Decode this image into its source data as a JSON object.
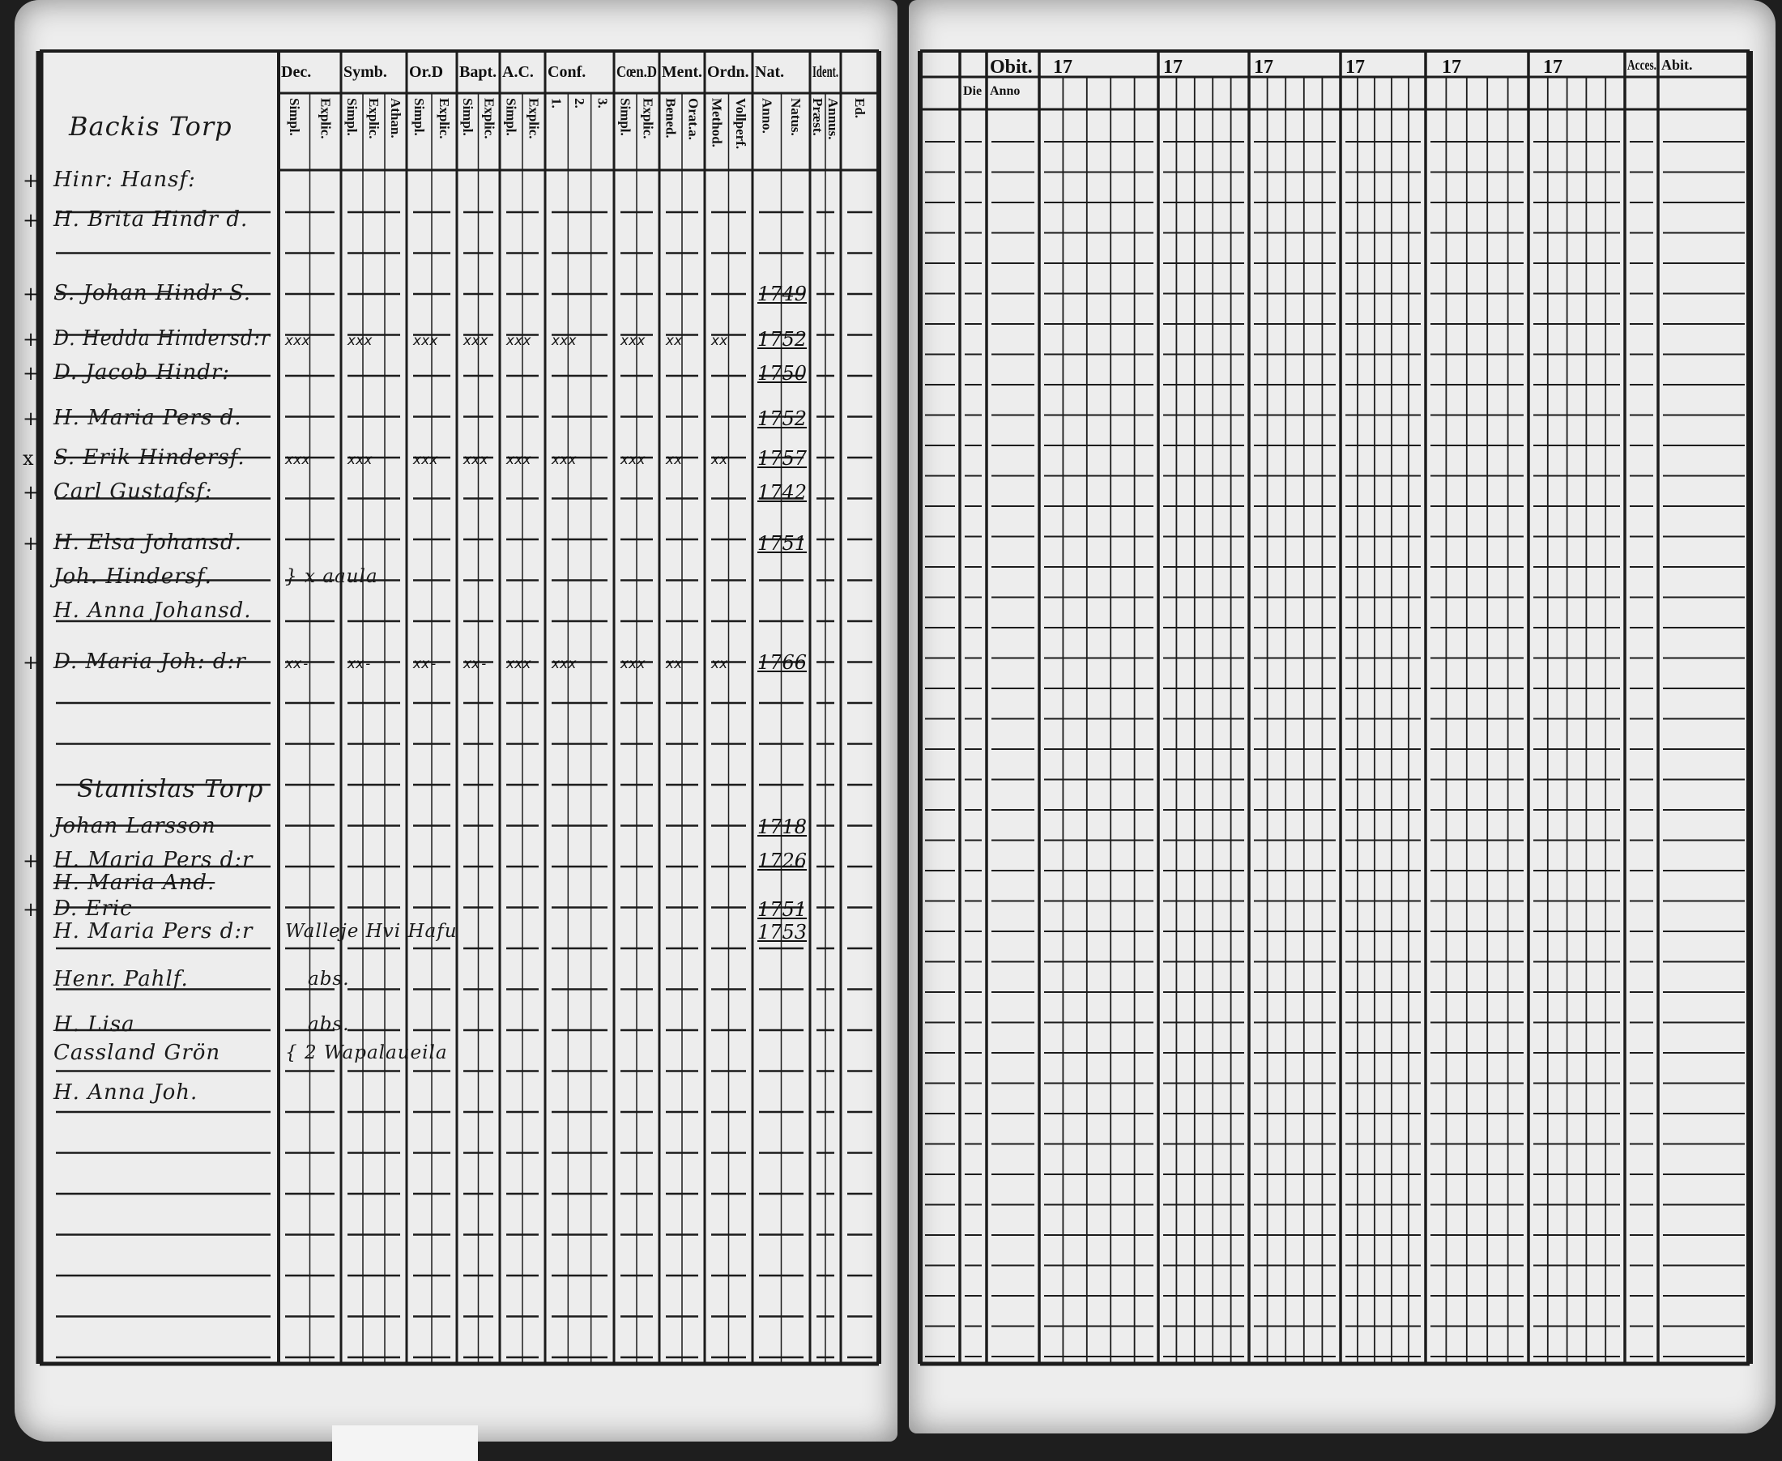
{
  "left_page": {
    "header_columns": [
      {
        "top": "Dec.",
        "sub": [
          "Simpl.",
          "Explic."
        ]
      },
      {
        "top": "Symb.",
        "sub": [
          "Simpl.",
          "Explic.",
          "Athan."
        ]
      },
      {
        "top": "Or.D",
        "sub": [
          "Simpl.",
          "Explic."
        ]
      },
      {
        "top": "Bapt.",
        "sub": [
          "Simpl.",
          "Explic."
        ]
      },
      {
        "top": "A.C.",
        "sub": [
          "Simpl.",
          "Explic."
        ]
      },
      {
        "top": "Conf.",
        "sub": [
          "1.",
          "2.",
          "3."
        ]
      },
      {
        "top": "Cœn.D",
        "sub": [
          "Simpl.",
          "Explic."
        ]
      },
      {
        "top": "Ment.",
        "sub": [
          "Bened.",
          "Orat.a."
        ]
      },
      {
        "top": "Ordn.",
        "sub": [
          "Method.",
          "Vollperf."
        ]
      },
      {
        "top": "Nat.",
        "sub": [
          "Anno.",
          "Natus."
        ]
      },
      {
        "top": "Ident.",
        "sub": [
          "Præst.",
          "Annus."
        ]
      },
      {
        "top": "",
        "sub": [
          "Ed."
        ]
      }
    ],
    "village_titles": [
      "Backis Torp",
      "Stanislas Torp"
    ],
    "entries": [
      {
        "margin": "+",
        "name": "Hinr: Hansf:",
        "marks": [],
        "year": "",
        "note": ""
      },
      {
        "margin": "+",
        "name": "H. Brita Hindr d.",
        "marks": [],
        "year": "",
        "note": ""
      },
      {
        "margin": "+",
        "name": "S. Johan Hindr S.",
        "marks": [],
        "year": "1749",
        "note": ""
      },
      {
        "margin": "+",
        "name": "D. Hedda Hindersd:r",
        "marks": [
          "xxx",
          "xxx",
          "xxx",
          "xxx",
          "xxx",
          "xxx",
          "xxx",
          "xx",
          "xx"
        ],
        "year": "1752",
        "note": ""
      },
      {
        "margin": "+",
        "name": "D. Jacob Hindr:",
        "marks": [],
        "year": "1750",
        "note": ""
      },
      {
        "margin": "+",
        "name": "H. Maria Pers d.",
        "marks": [],
        "year": "1752",
        "note": ""
      },
      {
        "margin": "x",
        "name": "S. Erik Hindersf.",
        "marks": [
          "xxx",
          "xxx",
          "xxx",
          "xxx",
          "xxx",
          "xxx",
          "xxx",
          "xx",
          "xx"
        ],
        "year": "1757",
        "note": ""
      },
      {
        "margin": "+",
        "name": "Carl Gustafsf:",
        "marks": [],
        "year": "1742",
        "note": ""
      },
      {
        "margin": "+",
        "name": "H. Elsa Johansd.",
        "marks": [],
        "year": "1751",
        "note": ""
      },
      {
        "margin": "",
        "name": "Joh. Hindersf.",
        "marks": [],
        "year": "",
        "note": "} x aaula"
      },
      {
        "margin": "",
        "name": "H. Anna Johansd.",
        "marks": [],
        "year": "",
        "note": ""
      },
      {
        "margin": "+",
        "name": "D. Maria Joh: d:r",
        "marks": [
          "xx-",
          "xx-",
          "xx-",
          "xx-",
          "xxx",
          "xxx",
          "xxx",
          "xx",
          "xx"
        ],
        "year": "1766",
        "note": ""
      },
      {
        "margin": "",
        "name": "Johan Larsson",
        "marks": [],
        "year": "1718",
        "note": ""
      },
      {
        "margin": "+",
        "name": "H. Maria Pers d:r",
        "marks": [],
        "year": "1726",
        "note": ""
      },
      {
        "margin": "",
        "name": "H. Maria And.",
        "marks": [],
        "year": "",
        "note": "",
        "struck": true
      },
      {
        "margin": "+",
        "name": "D. Eric",
        "marks": [],
        "year": "1751",
        "note": ""
      },
      {
        "margin": "",
        "name": "H. Maria Pers d:r",
        "marks": [],
        "year": "1753",
        "note": "Walleje Hvi Hafu"
      },
      {
        "margin": "",
        "name": "Henr. Pahlf.",
        "marks": [],
        "year": "",
        "note": "abs."
      },
      {
        "margin": "",
        "name": "H. Lisa",
        "marks": [],
        "year": "",
        "note": "abs."
      },
      {
        "margin": "",
        "name": "Cassland Grön",
        "marks": [],
        "year": "",
        "note": "{ 2 Wapalaueila"
      },
      {
        "margin": "",
        "name": "H. Anna Joh.",
        "marks": [],
        "year": "",
        "note": ""
      }
    ]
  },
  "right_page": {
    "headers": [
      "Obit.",
      "17",
      "17",
      "17",
      "17",
      "17",
      "17",
      "Acces.",
      "Abit."
    ],
    "sub_headers": [
      "Die",
      "Anno"
    ]
  },
  "colors": {
    "paper": "#ededed",
    "ink": "#1a1a1a",
    "background": "#1e1e1e"
  }
}
